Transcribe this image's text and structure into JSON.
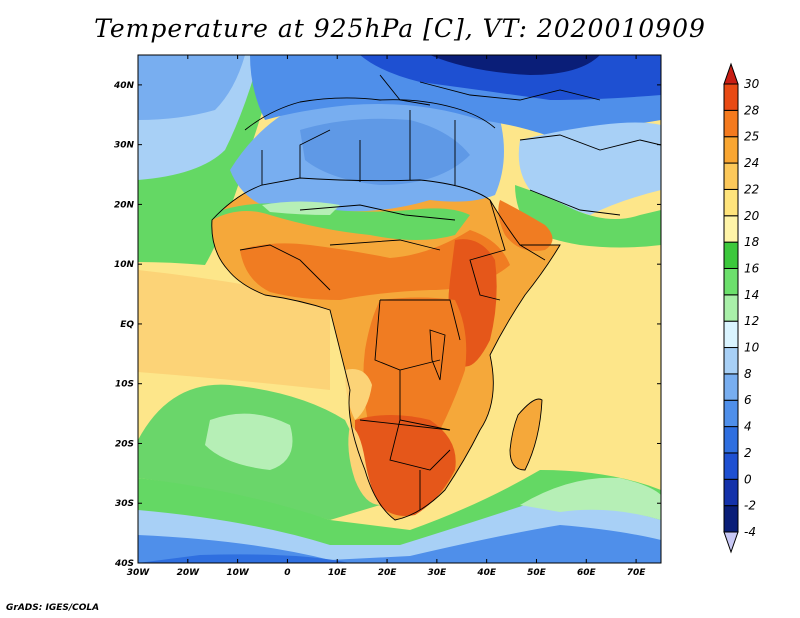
{
  "title": "Temperature at 925hPa [C], VT: 2020010909",
  "credit": "GrADS: IGES/COLA",
  "map": {
    "region": "Africa",
    "projection": "latlon",
    "lon_range": [
      -30,
      75
    ],
    "lat_range": [
      -40,
      45
    ],
    "lon_ticks": [
      "30W",
      "20W",
      "10W",
      "0",
      "10E",
      "20E",
      "30E",
      "40E",
      "50E",
      "60E",
      "70E"
    ],
    "lat_ticks": [
      "40S",
      "30S",
      "20S",
      "10S",
      "EQ",
      "10N",
      "20N",
      "30N",
      "40N"
    ]
  },
  "colorbar": {
    "levels": [
      "-4",
      "-2",
      "0",
      "2",
      "4",
      "6",
      "8",
      "10",
      "12",
      "14",
      "16",
      "18",
      "20",
      "22",
      "24",
      "25",
      "28",
      "30"
    ],
    "colors": [
      "#c8c8f5",
      "#0a1e78",
      "#1432aa",
      "#1e50d2",
      "#2f6fe0",
      "#4f8fea",
      "#78aef0",
      "#a8d0f6",
      "#daf4ff",
      "#a9f0a9",
      "#6ce06c",
      "#3cc83c",
      "#fff4a8",
      "#ffe47c",
      "#fcc85a",
      "#f9a632",
      "#f47a1e",
      "#e84a14",
      "#c81e14"
    ]
  },
  "colors": {
    "ocean_warm": "#fde68a",
    "ocean_mid": "#fcd377",
    "land_hot": "#f07c22",
    "land_hottest": "#e5571a",
    "cool_north": "#5f99e6",
    "cold_sea": "#2b62d6",
    "green_band": "#64d864",
    "pale_green": "#b6efb6",
    "border": "#000000"
  }
}
